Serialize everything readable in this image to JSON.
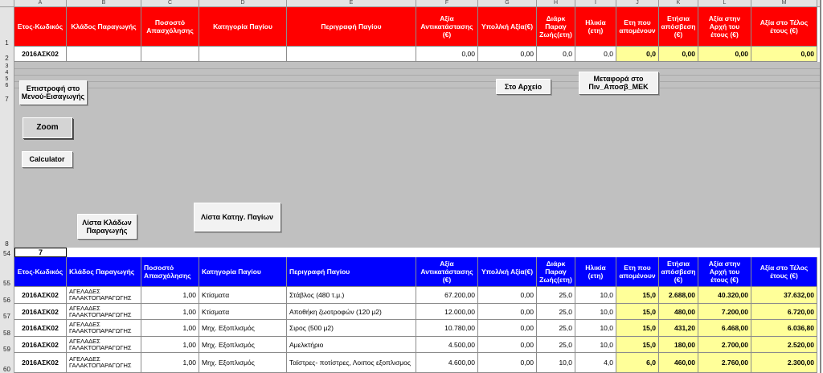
{
  "col_letters": [
    "A",
    "B",
    "C",
    "D",
    "E",
    "F",
    "G",
    "H",
    "I",
    "J",
    "K",
    "L",
    "M"
  ],
  "header_labels": [
    "Ετος-Κωδικός",
    "Κλάδος Παραγωγής",
    "Ποσοστό Απασχόλησης",
    "Κατηγορία Παγίου",
    "Περιγραφή Παγίου",
    "Αξία Αντικατάστασης (€)",
    "Υπολ/κή Αξία(€)",
    "Διάρκ Παραγ Ζωής(ετη)",
    "Ηλικία (ετη)",
    "Ετη που απομένουν",
    "Ετήσια απόσβεση (€)",
    "Αξία στην Αρχή του έτους (€)",
    "Αξία στο Τέλος έτους (€)"
  ],
  "row_numbers": {
    "r1": "1",
    "r2": "2",
    "r3": "3",
    "r4": "4",
    "r5": "5",
    "r6": "6",
    "r7": "7",
    "r8": "8",
    "r54": "54",
    "r55": "55",
    "r56": "56",
    "r57": "57",
    "r58": "58",
    "r59": "59",
    "r60": "60"
  },
  "top_row": [
    "2016ΑΣΚ02",
    "",
    "",
    "",
    "",
    "0,00",
    "0,00",
    "0,0",
    "0,0",
    "0,0",
    "0,00",
    "0,00",
    "0,00"
  ],
  "cell_54_value": "7",
  "buttons": {
    "back": "Επιστροφή στο Μενού-Εισαγωγής",
    "zoom": "Zoom",
    "calculator": "Calculator",
    "branch_list": "Λίστα Κλάδων Παραγωγής",
    "category_list": "Λίστα Κατηγ. Παγίων",
    "archive": "Στο Αρχείο",
    "transfer": "Μεταφορά στο Πιν_Αποσβ_ΜΕΚ"
  },
  "data_rows": [
    {
      "code": "2016ΑΣΚ02",
      "branch": "ΑΓΕΛΑΔΕΣ ΓΑΛΑΚΤΟΠΑΡΑΓΩΓΗΣ",
      "pct": "1,00",
      "category": "Κτίσματα",
      "description": "Στάβλος (480 τ.μ.)",
      "replacement": "67.200,00",
      "residual": "0,00",
      "life": "25,0",
      "age": "10,0",
      "remaining": "15,0",
      "annual": "2.688,00",
      "start": "40.320,00",
      "end": "37.632,00"
    },
    {
      "code": "2016ΑΣΚ02",
      "branch": "ΑΓΕΛΑΔΕΣ ΓΑΛΑΚΤΟΠΑΡΑΓΩΓΗΣ",
      "pct": "1,00",
      "category": "Κτίσματα",
      "description": "Αποθήκη ζωοτροφών (120 μ2)",
      "replacement": "12.000,00",
      "residual": "0,00",
      "life": "25,0",
      "age": "10,0",
      "remaining": "15,0",
      "annual": "480,00",
      "start": "7.200,00",
      "end": "6.720,00"
    },
    {
      "code": "2016ΑΣΚ02",
      "branch": "ΑΓΕΛΑΔΕΣ ΓΑΛΑΚΤΟΠΑΡΑΓΩΓΗΣ",
      "pct": "1,00",
      "category": "Μηχ. Εξοπλισμός",
      "description": "Σιρος (500 μ2)",
      "replacement": "10.780,00",
      "residual": "0,00",
      "life": "25,0",
      "age": "10,0",
      "remaining": "15,0",
      "annual": "431,20",
      "start": "6.468,00",
      "end": "6.036,80"
    },
    {
      "code": "2016ΑΣΚ02",
      "branch": "ΑΓΕΛΑΔΕΣ ΓΑΛΑΚΤΟΠΑΡΑΓΩΓΗΣ",
      "pct": "1,00",
      "category": "Μηχ. Εξοπλισμός",
      "description": "Αμελκτήριο",
      "replacement": "4.500,00",
      "residual": "0,00",
      "life": "25,0",
      "age": "10,0",
      "remaining": "15,0",
      "annual": "180,00",
      "start": "2.700,00",
      "end": "2.520,00"
    },
    {
      "code": "2016ΑΣΚ02",
      "branch": "ΑΓΕΛΑΔΕΣ ΓΑΛΑΚΤΟΠΑΡΑΓΩΓΗΣ",
      "pct": "1,00",
      "category": "Μηχ. Εξοπλισμός",
      "description": "Ταϊστρες- ποτίστρες, Λοιπος εξοπλισμος",
      "replacement": "4.600,00",
      "residual": "0,00",
      "life": "10,0",
      "age": "4,0",
      "remaining": "6,0",
      "annual": "460,00",
      "start": "2.760,00",
      "end": "2.300,00"
    }
  ],
  "colors": {
    "header_red": "#ff0000",
    "header_blue": "#0000ff",
    "yellow_cells": "#ffff99",
    "gray_area": "#c0c0c0"
  }
}
